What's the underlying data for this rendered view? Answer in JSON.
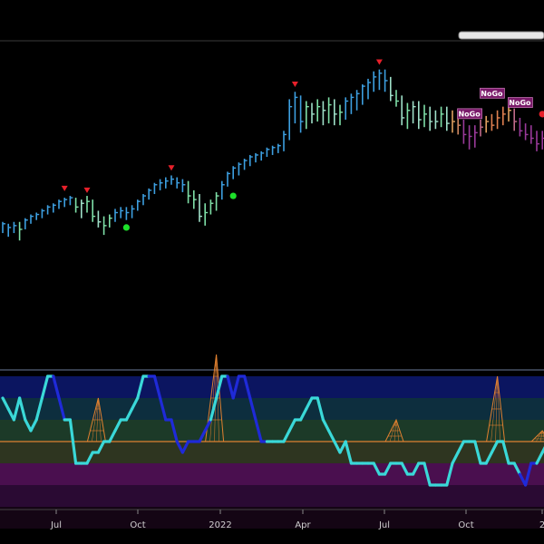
{
  "chart_data": [
    {
      "type": "bar",
      "panel": "price",
      "style": "ohlc-bars",
      "x_unit": "week",
      "x_ticks": [
        "Jul",
        "Oct",
        "2022",
        "Apr",
        "Jul",
        "Oct",
        "2"
      ],
      "y_range": [
        0,
        100
      ],
      "bars": [
        {
          "i": 0,
          "h": 50,
          "l": 44,
          "c": 49,
          "col": "#3d9fe0"
        },
        {
          "i": 1,
          "h": 49,
          "l": 42,
          "c": 47,
          "col": "#3d9fe0"
        },
        {
          "i": 2,
          "h": 50,
          "l": 44,
          "c": 48,
          "col": "#3d9fe0"
        },
        {
          "i": 3,
          "h": 50,
          "l": 40,
          "c": 46,
          "col": "#7fe0a8"
        },
        {
          "i": 4,
          "h": 52,
          "l": 46,
          "c": 51,
          "col": "#3d9fe0"
        },
        {
          "i": 5,
          "h": 54,
          "l": 49,
          "c": 53,
          "col": "#3d9fe0"
        },
        {
          "i": 6,
          "h": 55,
          "l": 51,
          "c": 54,
          "col": "#3d9fe0"
        },
        {
          "i": 7,
          "h": 57,
          "l": 52,
          "c": 56,
          "col": "#3d9fe0"
        },
        {
          "i": 8,
          "h": 59,
          "l": 54,
          "c": 58,
          "col": "#3d9fe0"
        },
        {
          "i": 9,
          "h": 60,
          "l": 55,
          "c": 59,
          "col": "#3d9fe0"
        },
        {
          "i": 10,
          "h": 62,
          "l": 57,
          "c": 61,
          "col": "#3d9fe0"
        },
        {
          "i": 11,
          "h": 63,
          "l": 58,
          "c": 62,
          "col": "#3d9fe0"
        },
        {
          "i": 12,
          "h": 64,
          "l": 59,
          "c": 63,
          "col": "#3d9fe0"
        },
        {
          "i": 13,
          "h": 63,
          "l": 55,
          "c": 58,
          "col": "#7fe0a8"
        },
        {
          "i": 14,
          "h": 62,
          "l": 52,
          "c": 60,
          "col": "#9fe0c8"
        },
        {
          "i": 15,
          "h": 64,
          "l": 55,
          "c": 61,
          "col": "#7fe0a8"
        },
        {
          "i": 16,
          "h": 62,
          "l": 50,
          "c": 53,
          "col": "#7fe0a8"
        },
        {
          "i": 17,
          "h": 56,
          "l": 47,
          "c": 50,
          "col": "#9fe0c8"
        },
        {
          "i": 18,
          "h": 53,
          "l": 43,
          "c": 48,
          "col": "#7fe0a8"
        },
        {
          "i": 19,
          "h": 54,
          "l": 47,
          "c": 52,
          "col": "#7fe0a8"
        },
        {
          "i": 20,
          "h": 57,
          "l": 50,
          "c": 55,
          "col": "#3d9fe0"
        },
        {
          "i": 21,
          "h": 58,
          "l": 52,
          "c": 56,
          "col": "#3d9fe0"
        },
        {
          "i": 22,
          "h": 58,
          "l": 51,
          "c": 55,
          "col": "#3d9fe0"
        },
        {
          "i": 23,
          "h": 59,
          "l": 52,
          "c": 57,
          "col": "#3d9fe0"
        },
        {
          "i": 24,
          "h": 62,
          "l": 56,
          "c": 61,
          "col": "#3d9fe0"
        },
        {
          "i": 25,
          "h": 65,
          "l": 59,
          "c": 64,
          "col": "#3d9fe0"
        },
        {
          "i": 26,
          "h": 68,
          "l": 62,
          "c": 67,
          "col": "#3d9fe0"
        },
        {
          "i": 27,
          "h": 71,
          "l": 65,
          "c": 70,
          "col": "#3d9fe0"
        },
        {
          "i": 28,
          "h": 73,
          "l": 67,
          "c": 71,
          "col": "#3d9fe0"
        },
        {
          "i": 29,
          "h": 74,
          "l": 68,
          "c": 72,
          "col": "#3d9fe0"
        },
        {
          "i": 30,
          "h": 75,
          "l": 70,
          "c": 73,
          "col": "#3d9fe0"
        },
        {
          "i": 31,
          "h": 74,
          "l": 68,
          "c": 71,
          "col": "#3d9fe0"
        },
        {
          "i": 32,
          "h": 73,
          "l": 66,
          "c": 70,
          "col": "#3d9fe0"
        },
        {
          "i": 33,
          "h": 72,
          "l": 60,
          "c": 64,
          "col": "#7fe0a8"
        },
        {
          "i": 34,
          "h": 67,
          "l": 57,
          "c": 62,
          "col": "#7fe0a8"
        },
        {
          "i": 35,
          "h": 65,
          "l": 50,
          "c": 53,
          "col": "#9fe0c8"
        },
        {
          "i": 36,
          "h": 60,
          "l": 48,
          "c": 55,
          "col": "#7fe0a8"
        },
        {
          "i": 37,
          "h": 62,
          "l": 54,
          "c": 60,
          "col": "#7fe0a8"
        },
        {
          "i": 38,
          "h": 66,
          "l": 56,
          "c": 64,
          "col": "#7fe0a8"
        },
        {
          "i": 39,
          "h": 72,
          "l": 62,
          "c": 70,
          "col": "#3d9fe0"
        },
        {
          "i": 40,
          "h": 77,
          "l": 69,
          "c": 76,
          "col": "#3d9fe0"
        },
        {
          "i": 41,
          "h": 80,
          "l": 73,
          "c": 79,
          "col": "#3d9fe0"
        },
        {
          "i": 42,
          "h": 82,
          "l": 75,
          "c": 81,
          "col": "#3d9fe0"
        },
        {
          "i": 43,
          "h": 84,
          "l": 78,
          "c": 83,
          "col": "#3d9fe0"
        },
        {
          "i": 44,
          "h": 86,
          "l": 80,
          "c": 85,
          "col": "#3d9fe0"
        },
        {
          "i": 45,
          "h": 87,
          "l": 82,
          "c": 86,
          "col": "#3d9fe0"
        },
        {
          "i": 46,
          "h": 88,
          "l": 83,
          "c": 87,
          "col": "#3d9fe0"
        },
        {
          "i": 47,
          "h": 90,
          "l": 85,
          "c": 89,
          "col": "#3d9fe0"
        },
        {
          "i": 48,
          "h": 91,
          "l": 86,
          "c": 90,
          "col": "#3d9fe0"
        },
        {
          "i": 49,
          "h": 92,
          "l": 87,
          "c": 91,
          "col": "#3d9fe0"
        },
        {
          "i": 50,
          "h": 99,
          "l": 88,
          "c": 97,
          "col": "#3d9fe0"
        },
        {
          "i": 51,
          "h": 116,
          "l": 94,
          "c": 112,
          "col": "#3d9fe0"
        },
        {
          "i": 52,
          "h": 120,
          "l": 103,
          "c": 117,
          "col": "#3d9fe0"
        },
        {
          "i": 53,
          "h": 118,
          "l": 98,
          "c": 104,
          "col": "#3d9fe0"
        },
        {
          "i": 54,
          "h": 115,
          "l": 100,
          "c": 112,
          "col": "#7fe0a8"
        },
        {
          "i": 55,
          "h": 114,
          "l": 103,
          "c": 108,
          "col": "#9fe0c8"
        },
        {
          "i": 56,
          "h": 116,
          "l": 104,
          "c": 112,
          "col": "#7fe0a8"
        },
        {
          "i": 57,
          "h": 115,
          "l": 102,
          "c": 110,
          "col": "#9fe0c8"
        },
        {
          "i": 58,
          "h": 117,
          "l": 103,
          "c": 113,
          "col": "#7fe0a8"
        },
        {
          "i": 59,
          "h": 116,
          "l": 102,
          "c": 108,
          "col": "#9fe0c8"
        },
        {
          "i": 60,
          "h": 113,
          "l": 102,
          "c": 109,
          "col": "#7fe0a8"
        },
        {
          "i": 61,
          "h": 117,
          "l": 105,
          "c": 115,
          "col": "#3d9fe0"
        },
        {
          "i": 62,
          "h": 119,
          "l": 108,
          "c": 117,
          "col": "#3d9fe0"
        },
        {
          "i": 63,
          "h": 121,
          "l": 110,
          "c": 119,
          "col": "#3d9fe0"
        },
        {
          "i": 64,
          "h": 124,
          "l": 113,
          "c": 123,
          "col": "#3d9fe0"
        },
        {
          "i": 65,
          "h": 127,
          "l": 116,
          "c": 125,
          "col": "#3d9fe0"
        },
        {
          "i": 66,
          "h": 131,
          "l": 120,
          "c": 128,
          "col": "#3d9fe0"
        },
        {
          "i": 67,
          "h": 132,
          "l": 121,
          "c": 130,
          "col": "#3d9fe0"
        },
        {
          "i": 68,
          "h": 132,
          "l": 120,
          "c": 126,
          "col": "#3d9fe0"
        },
        {
          "i": 69,
          "h": 128,
          "l": 115,
          "c": 118,
          "col": "#9fe0c8"
        },
        {
          "i": 70,
          "h": 121,
          "l": 112,
          "c": 115,
          "col": "#7fe0a8"
        },
        {
          "i": 71,
          "h": 118,
          "l": 102,
          "c": 106,
          "col": "#9fe0c8"
        },
        {
          "i": 72,
          "h": 114,
          "l": 100,
          "c": 110,
          "col": "#7fe0a8"
        },
        {
          "i": 73,
          "h": 115,
          "l": 103,
          "c": 112,
          "col": "#9fe0c8"
        },
        {
          "i": 74,
          "h": 115,
          "l": 100,
          "c": 105,
          "col": "#9fe0c8"
        },
        {
          "i": 75,
          "h": 113,
          "l": 101,
          "c": 108,
          "col": "#7fe0a8"
        },
        {
          "i": 76,
          "h": 112,
          "l": 99,
          "c": 104,
          "col": "#9fe0c8"
        },
        {
          "i": 77,
          "h": 110,
          "l": 100,
          "c": 104,
          "col": "#9fe0c8"
        },
        {
          "i": 78,
          "h": 112,
          "l": 101,
          "c": 108,
          "col": "#7fe0a8"
        },
        {
          "i": 79,
          "h": 112,
          "l": 99,
          "c": 103,
          "col": "#9fe0c8"
        },
        {
          "i": 80,
          "h": 110,
          "l": 98,
          "c": 104,
          "col": "#e0a060"
        },
        {
          "i": 81,
          "h": 108,
          "l": 97,
          "c": 102,
          "col": "#d08860"
        },
        {
          "i": 82,
          "h": 105,
          "l": 92,
          "c": 97,
          "col": "#9a3a9a"
        },
        {
          "i": 83,
          "h": 102,
          "l": 89,
          "c": 96,
          "col": "#9a3a9a"
        },
        {
          "i": 84,
          "h": 102,
          "l": 90,
          "c": 98,
          "col": "#9a3a9a"
        },
        {
          "i": 85,
          "h": 105,
          "l": 96,
          "c": 101,
          "col": "#c06a8a"
        },
        {
          "i": 86,
          "h": 107,
          "l": 98,
          "c": 104,
          "col": "#e0a060"
        },
        {
          "i": 87,
          "h": 108,
          "l": 99,
          "c": 102,
          "col": "#e08050"
        },
        {
          "i": 88,
          "h": 110,
          "l": 100,
          "c": 106,
          "col": "#e08050"
        },
        {
          "i": 89,
          "h": 112,
          "l": 102,
          "c": 108,
          "col": "#e08050"
        },
        {
          "i": 90,
          "h": 113,
          "l": 104,
          "c": 110,
          "col": "#e0a060"
        },
        {
          "i": 91,
          "h": 111,
          "l": 99,
          "c": 104,
          "col": "#c06a8a"
        },
        {
          "i": 92,
          "h": 106,
          "l": 96,
          "c": 99,
          "col": "#9a3a9a"
        },
        {
          "i": 93,
          "h": 103,
          "l": 94,
          "c": 97,
          "col": "#9a3a9a"
        },
        {
          "i": 94,
          "h": 102,
          "l": 92,
          "c": 95,
          "col": "#9a3a9a"
        },
        {
          "i": 95,
          "h": 99,
          "l": 88,
          "c": 92,
          "col": "#9a3a9a"
        },
        {
          "i": 96,
          "h": 99,
          "l": 89,
          "c": 95,
          "col": "#9a3a9a"
        },
        {
          "i": 97,
          "h": 101,
          "l": 92,
          "c": 98,
          "col": "#9a3a9a"
        }
      ],
      "markers": [
        {
          "kind": "triangle-down",
          "i": 11,
          "v": 68,
          "color": "#e8202a"
        },
        {
          "kind": "triangle-down",
          "i": 15,
          "v": 67,
          "color": "#e8202a"
        },
        {
          "kind": "triangle-down",
          "i": 30,
          "v": 79,
          "color": "#e8202a"
        },
        {
          "kind": "triangle-down",
          "i": 52,
          "v": 124,
          "color": "#e8202a"
        },
        {
          "kind": "triangle-down",
          "i": 67,
          "v": 136,
          "color": "#e8202a"
        },
        {
          "kind": "dot",
          "i": 22,
          "v": 47,
          "color": "#1de02a"
        },
        {
          "kind": "dot",
          "i": 41,
          "v": 64,
          "color": "#1de02a"
        },
        {
          "kind": "dot",
          "i": 96,
          "v": 108,
          "color": "#e8202a"
        }
      ],
      "labels": [
        {
          "i": 87,
          "v": 119,
          "text": "NoGo"
        },
        {
          "i": 83,
          "v": 108,
          "text": "NoGo"
        },
        {
          "i": 92,
          "v": 114,
          "text": "NoGo"
        }
      ]
    },
    {
      "type": "line",
      "panel": "oscillator",
      "y_range": [
        -4,
        4
      ],
      "zero_line": 0,
      "bands": [
        {
          "from": 2,
          "to": 3,
          "color": "#0b1560"
        },
        {
          "from": 1,
          "to": 2,
          "color": "#0d2e3e"
        },
        {
          "from": 0,
          "to": 1,
          "color": "#1c3a28"
        },
        {
          "from": -1,
          "to": 0,
          "color": "#2e3520"
        },
        {
          "from": -2,
          "to": -1,
          "color": "#4a0f4f"
        },
        {
          "from": -3,
          "to": -2,
          "color": "#2a0a33"
        },
        {
          "from": -4,
          "to": -3,
          "color": "#140514"
        }
      ],
      "series": [
        {
          "values": [
            2,
            1.5,
            1,
            2,
            1,
            0.5,
            1,
            2,
            3,
            3,
            2,
            1,
            1,
            -1,
            -1,
            -1,
            -0.5,
            -0.5,
            0,
            0,
            0.5,
            1,
            1,
            1.5,
            2,
            3,
            3,
            3,
            2,
            1,
            1,
            0,
            -0.5,
            0,
            0,
            0,
            0.5,
            1,
            2,
            3,
            3,
            2,
            3,
            3,
            2,
            1,
            0,
            0,
            0,
            0,
            0,
            0.5,
            1,
            1,
            1.5,
            2,
            2,
            1,
            0.5,
            0,
            -0.5,
            0,
            -1,
            -1,
            -1,
            -1,
            -1,
            -1.5,
            -1.5,
            -1,
            -1,
            -1,
            -1.5,
            -1.5,
            -1,
            -1,
            -2,
            -2,
            -2,
            -2,
            -1,
            -0.5,
            0,
            0,
            0,
            -1,
            -1,
            -0.5,
            0,
            0,
            -1,
            -1,
            -1.5,
            -2,
            -1,
            -1,
            -0.5,
            0
          ],
          "colors": [
            "#3ad8d8",
            "#3ad8d8",
            "#3ad8d8",
            "#3ad8d8",
            "#3ad8d8",
            "#3ad8d8",
            "#3ad8d8",
            "#3ad8d8",
            "#3ad8d8",
            "#1f2ad8",
            "#1f2ad8",
            "#3ad8d8",
            "#3ad8d8",
            "#3ad8d8",
            "#3ad8d8",
            "#3ad8d8",
            "#3ad8d8",
            "#3ad8d8",
            "#3ad8d8",
            "#3ad8d8",
            "#3ad8d8",
            "#3ad8d8",
            "#3ad8d8",
            "#3ad8d8",
            "#3ad8d8",
            "#3ad8d8",
            "#1f2ad8",
            "#1f2ad8",
            "#1f2ad8",
            "#1f2ad8",
            "#1f2ad8",
            "#1f2ad8",
            "#1f2ad8",
            "#1f2ad8",
            "#1f2ad8",
            "#1f2ad8",
            "#1f2ad8",
            "#3ad8d8",
            "#3ad8d8",
            "#3ad8d8",
            "#1f2ad8",
            "#1f2ad8",
            "#1f2ad8",
            "#1f2ad8",
            "#1f2ad8",
            "#1f2ad8",
            "#1f2ad8",
            "#3ad8d8",
            "#3ad8d8",
            "#3ad8d8",
            "#3ad8d8",
            "#3ad8d8",
            "#3ad8d8",
            "#3ad8d8",
            "#3ad8d8",
            "#3ad8d8",
            "#3ad8d8",
            "#3ad8d8",
            "#3ad8d8",
            "#3ad8d8",
            "#3ad8d8",
            "#3ad8d8",
            "#3ad8d8",
            "#3ad8d8",
            "#3ad8d8",
            "#3ad8d8",
            "#3ad8d8",
            "#3ad8d8",
            "#3ad8d8",
            "#3ad8d8",
            "#3ad8d8",
            "#3ad8d8",
            "#3ad8d8",
            "#3ad8d8",
            "#3ad8d8",
            "#3ad8d8",
            "#3ad8d8",
            "#3ad8d8",
            "#3ad8d8",
            "#3ad8d8",
            "#3ad8d8",
            "#3ad8d8",
            "#3ad8d8",
            "#3ad8d8",
            "#3ad8d8",
            "#3ad8d8",
            "#3ad8d8",
            "#3ad8d8",
            "#3ad8d8",
            "#3ad8d8",
            "#3ad8d8",
            "#3ad8d8",
            "#1f2ad8",
            "#1f2ad8",
            "#1f2ad8",
            "#3ad8d8",
            "#3ad8d8",
            "#3ad8d8"
          ]
        }
      ],
      "spikes": [
        {
          "i": 17,
          "v": 2
        },
        {
          "i": 38,
          "v": 4
        },
        {
          "i": 70,
          "v": 1
        },
        {
          "i": 88,
          "v": 3
        },
        {
          "i": 96,
          "v": 0.5
        }
      ],
      "line_colors": {
        "zero": "#e08030",
        "spike": "#e08030"
      }
    }
  ]
}
